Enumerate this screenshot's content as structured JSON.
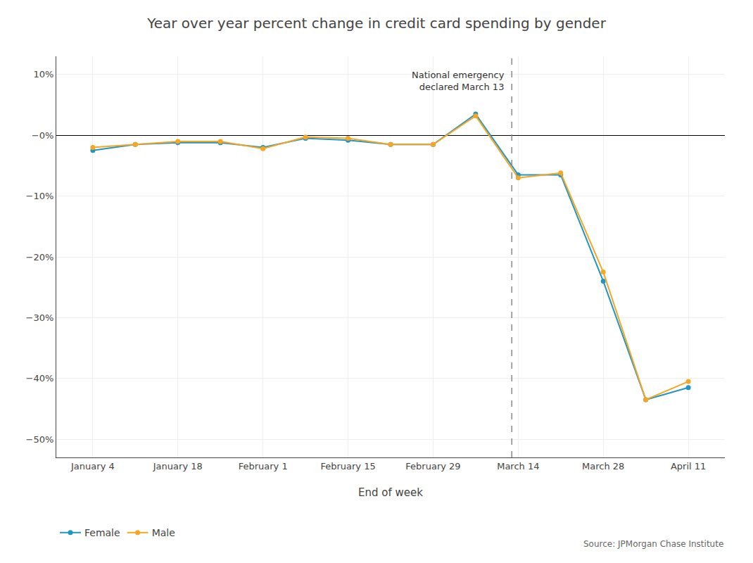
{
  "chart_data": {
    "type": "line",
    "title": "Year over year percent change in credit card spending by gender",
    "xlabel": "End of week",
    "categories": [
      "January 4",
      null,
      "January 18",
      null,
      "February 1",
      null,
      "February 15",
      null,
      "February 29",
      null,
      "March 14",
      null,
      "March 28",
      null,
      "April 11"
    ],
    "series": [
      {
        "name": "Female",
        "color": "#2196c4",
        "marker": "circle",
        "line_style": "solid",
        "values": [
          -2.5,
          -1.5,
          -1.2,
          -1.2,
          -2.0,
          -0.5,
          -0.8,
          -1.5,
          -1.5,
          3.5,
          -6.5,
          -6.5,
          -24.0,
          -43.5,
          -41.5
        ]
      },
      {
        "name": "Male",
        "color": "#f5a623",
        "marker": "circle",
        "line_style": "solid",
        "values": [
          -2.0,
          -1.5,
          -1.0,
          -1.0,
          -2.2,
          -0.3,
          -0.5,
          -1.5,
          -1.5,
          3.2,
          -7.0,
          -6.2,
          -22.5,
          -43.5,
          -40.5
        ]
      }
    ],
    "ylim": [
      -53,
      13
    ],
    "yticks": [
      {
        "value": 10,
        "label": "10%"
      },
      {
        "value": 0,
        "label": "−0%"
      },
      {
        "value": -10,
        "label": "−10%"
      },
      {
        "value": -20,
        "label": "−20%"
      },
      {
        "value": -30,
        "label": "−30%"
      },
      {
        "value": -40,
        "label": "−40%"
      },
      {
        "value": -50,
        "label": "−50%"
      }
    ],
    "annotations": [
      "National emergency\ndeclared March 13",
      "Source: JPMorgan Chase Institute"
    ],
    "grid": true,
    "legend": "bottom"
  }
}
